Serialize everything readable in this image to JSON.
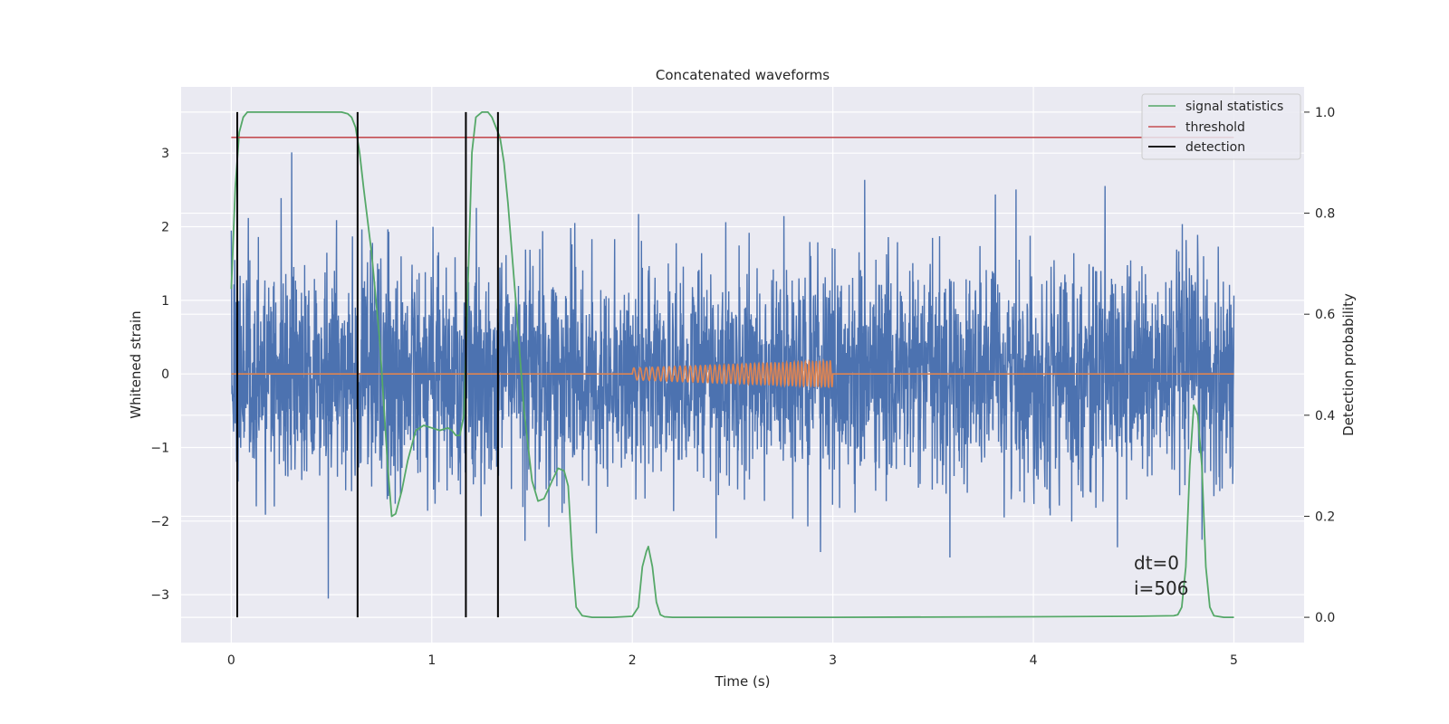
{
  "chart_data": {
    "type": "line",
    "title": "Concatenated waveforms",
    "xlabel": "Time (s)",
    "ylabel_left": "Whitened strain",
    "ylabel_right": "Detection probability",
    "xlim": [
      -0.25,
      5.35
    ],
    "ylim_left": [
      -3.65,
      3.9
    ],
    "ylim_right": [
      -0.05,
      1.05
    ],
    "x_ticks": [
      0,
      1,
      2,
      3,
      4,
      5
    ],
    "x_tick_labels": [
      "0",
      "1",
      "2",
      "3",
      "4",
      "5"
    ],
    "y_left_ticks": [
      -3,
      -2,
      -1,
      0,
      1,
      2,
      3
    ],
    "y_left_tick_labels": [
      "−3",
      "−2",
      "−1",
      "0",
      "1",
      "2",
      "3"
    ],
    "y_right_ticks": [
      0.0,
      0.2,
      0.4,
      0.6,
      0.8,
      1.0
    ],
    "y_right_tick_labels": [
      "0.0",
      "0.2",
      "0.4",
      "0.6",
      "0.8",
      "1.0"
    ],
    "grid": true,
    "legend_position": "top-right",
    "colors": {
      "background": "#eaeaf2",
      "grid": "#ffffff",
      "strain": "#4c72b0",
      "injected_signal": "#dd8452",
      "signal_statistics": "#55a868",
      "threshold": "#c44e52",
      "detection": "#000000"
    },
    "series": [
      {
        "name": "",
        "role": "whitened strain noise",
        "axis": "left",
        "x_range": [
          0,
          5
        ],
        "amplitude_std": 0.75,
        "peak_range": [
          -3.3,
          3.3
        ]
      },
      {
        "name": "",
        "role": "injected chirp",
        "axis": "left",
        "x_range": [
          2.0,
          3.0
        ],
        "amplitude_range": [
          0.08,
          0.18
        ],
        "cycles": 45
      },
      {
        "name": "signal statistics",
        "axis": "right",
        "x": [
          0.0,
          0.02,
          0.04,
          0.06,
          0.08,
          0.1,
          0.15,
          0.2,
          0.3,
          0.4,
          0.5,
          0.55,
          0.58,
          0.6,
          0.62,
          0.64,
          0.66,
          0.7,
          0.74,
          0.78,
          0.8,
          0.82,
          0.85,
          0.88,
          0.92,
          0.96,
          1.0,
          1.04,
          1.08,
          1.1,
          1.12,
          1.14,
          1.16,
          1.18,
          1.2,
          1.22,
          1.25,
          1.28,
          1.3,
          1.32,
          1.34,
          1.36,
          1.38,
          1.42,
          1.46,
          1.5,
          1.53,
          1.56,
          1.6,
          1.63,
          1.66,
          1.68,
          1.7,
          1.72,
          1.75,
          1.8,
          1.9,
          2.0,
          2.03,
          2.05,
          2.07,
          2.08,
          2.1,
          2.12,
          2.14,
          2.16,
          2.2,
          2.4,
          3.0,
          4.0,
          4.5,
          4.7,
          4.72,
          4.74,
          4.76,
          4.78,
          4.8,
          4.82,
          4.84,
          4.86,
          4.88,
          4.9,
          4.95,
          5.0
        ],
        "y": [
          0.65,
          0.85,
          0.96,
          0.99,
          1.0,
          1.0,
          1.0,
          1.0,
          1.0,
          1.0,
          1.0,
          1.0,
          0.997,
          0.99,
          0.97,
          0.92,
          0.85,
          0.72,
          0.55,
          0.3,
          0.2,
          0.205,
          0.25,
          0.31,
          0.37,
          0.38,
          0.375,
          0.37,
          0.375,
          0.37,
          0.36,
          0.36,
          0.4,
          0.65,
          0.92,
          0.99,
          1.0,
          1.0,
          0.99,
          0.97,
          0.95,
          0.9,
          0.82,
          0.62,
          0.41,
          0.27,
          0.23,
          0.235,
          0.27,
          0.295,
          0.29,
          0.26,
          0.12,
          0.02,
          0.003,
          0.0,
          0.0,
          0.002,
          0.02,
          0.1,
          0.13,
          0.14,
          0.1,
          0.03,
          0.005,
          0.001,
          0.0,
          0.0,
          0.0,
          0.001,
          0.002,
          0.003,
          0.005,
          0.02,
          0.1,
          0.3,
          0.42,
          0.4,
          0.3,
          0.1,
          0.02,
          0.003,
          0.0,
          0.0
        ]
      },
      {
        "name": "threshold",
        "axis": "right",
        "x": [
          0,
          5
        ],
        "y": [
          0.95,
          0.95
        ]
      },
      {
        "name": "detection",
        "axis": "right",
        "type": "vlines",
        "x": [
          0.03,
          0.63,
          1.17,
          1.33
        ],
        "y_range": [
          0.0,
          1.0
        ]
      }
    ],
    "annotations": [
      "dt=0",
      "i=506"
    ]
  }
}
